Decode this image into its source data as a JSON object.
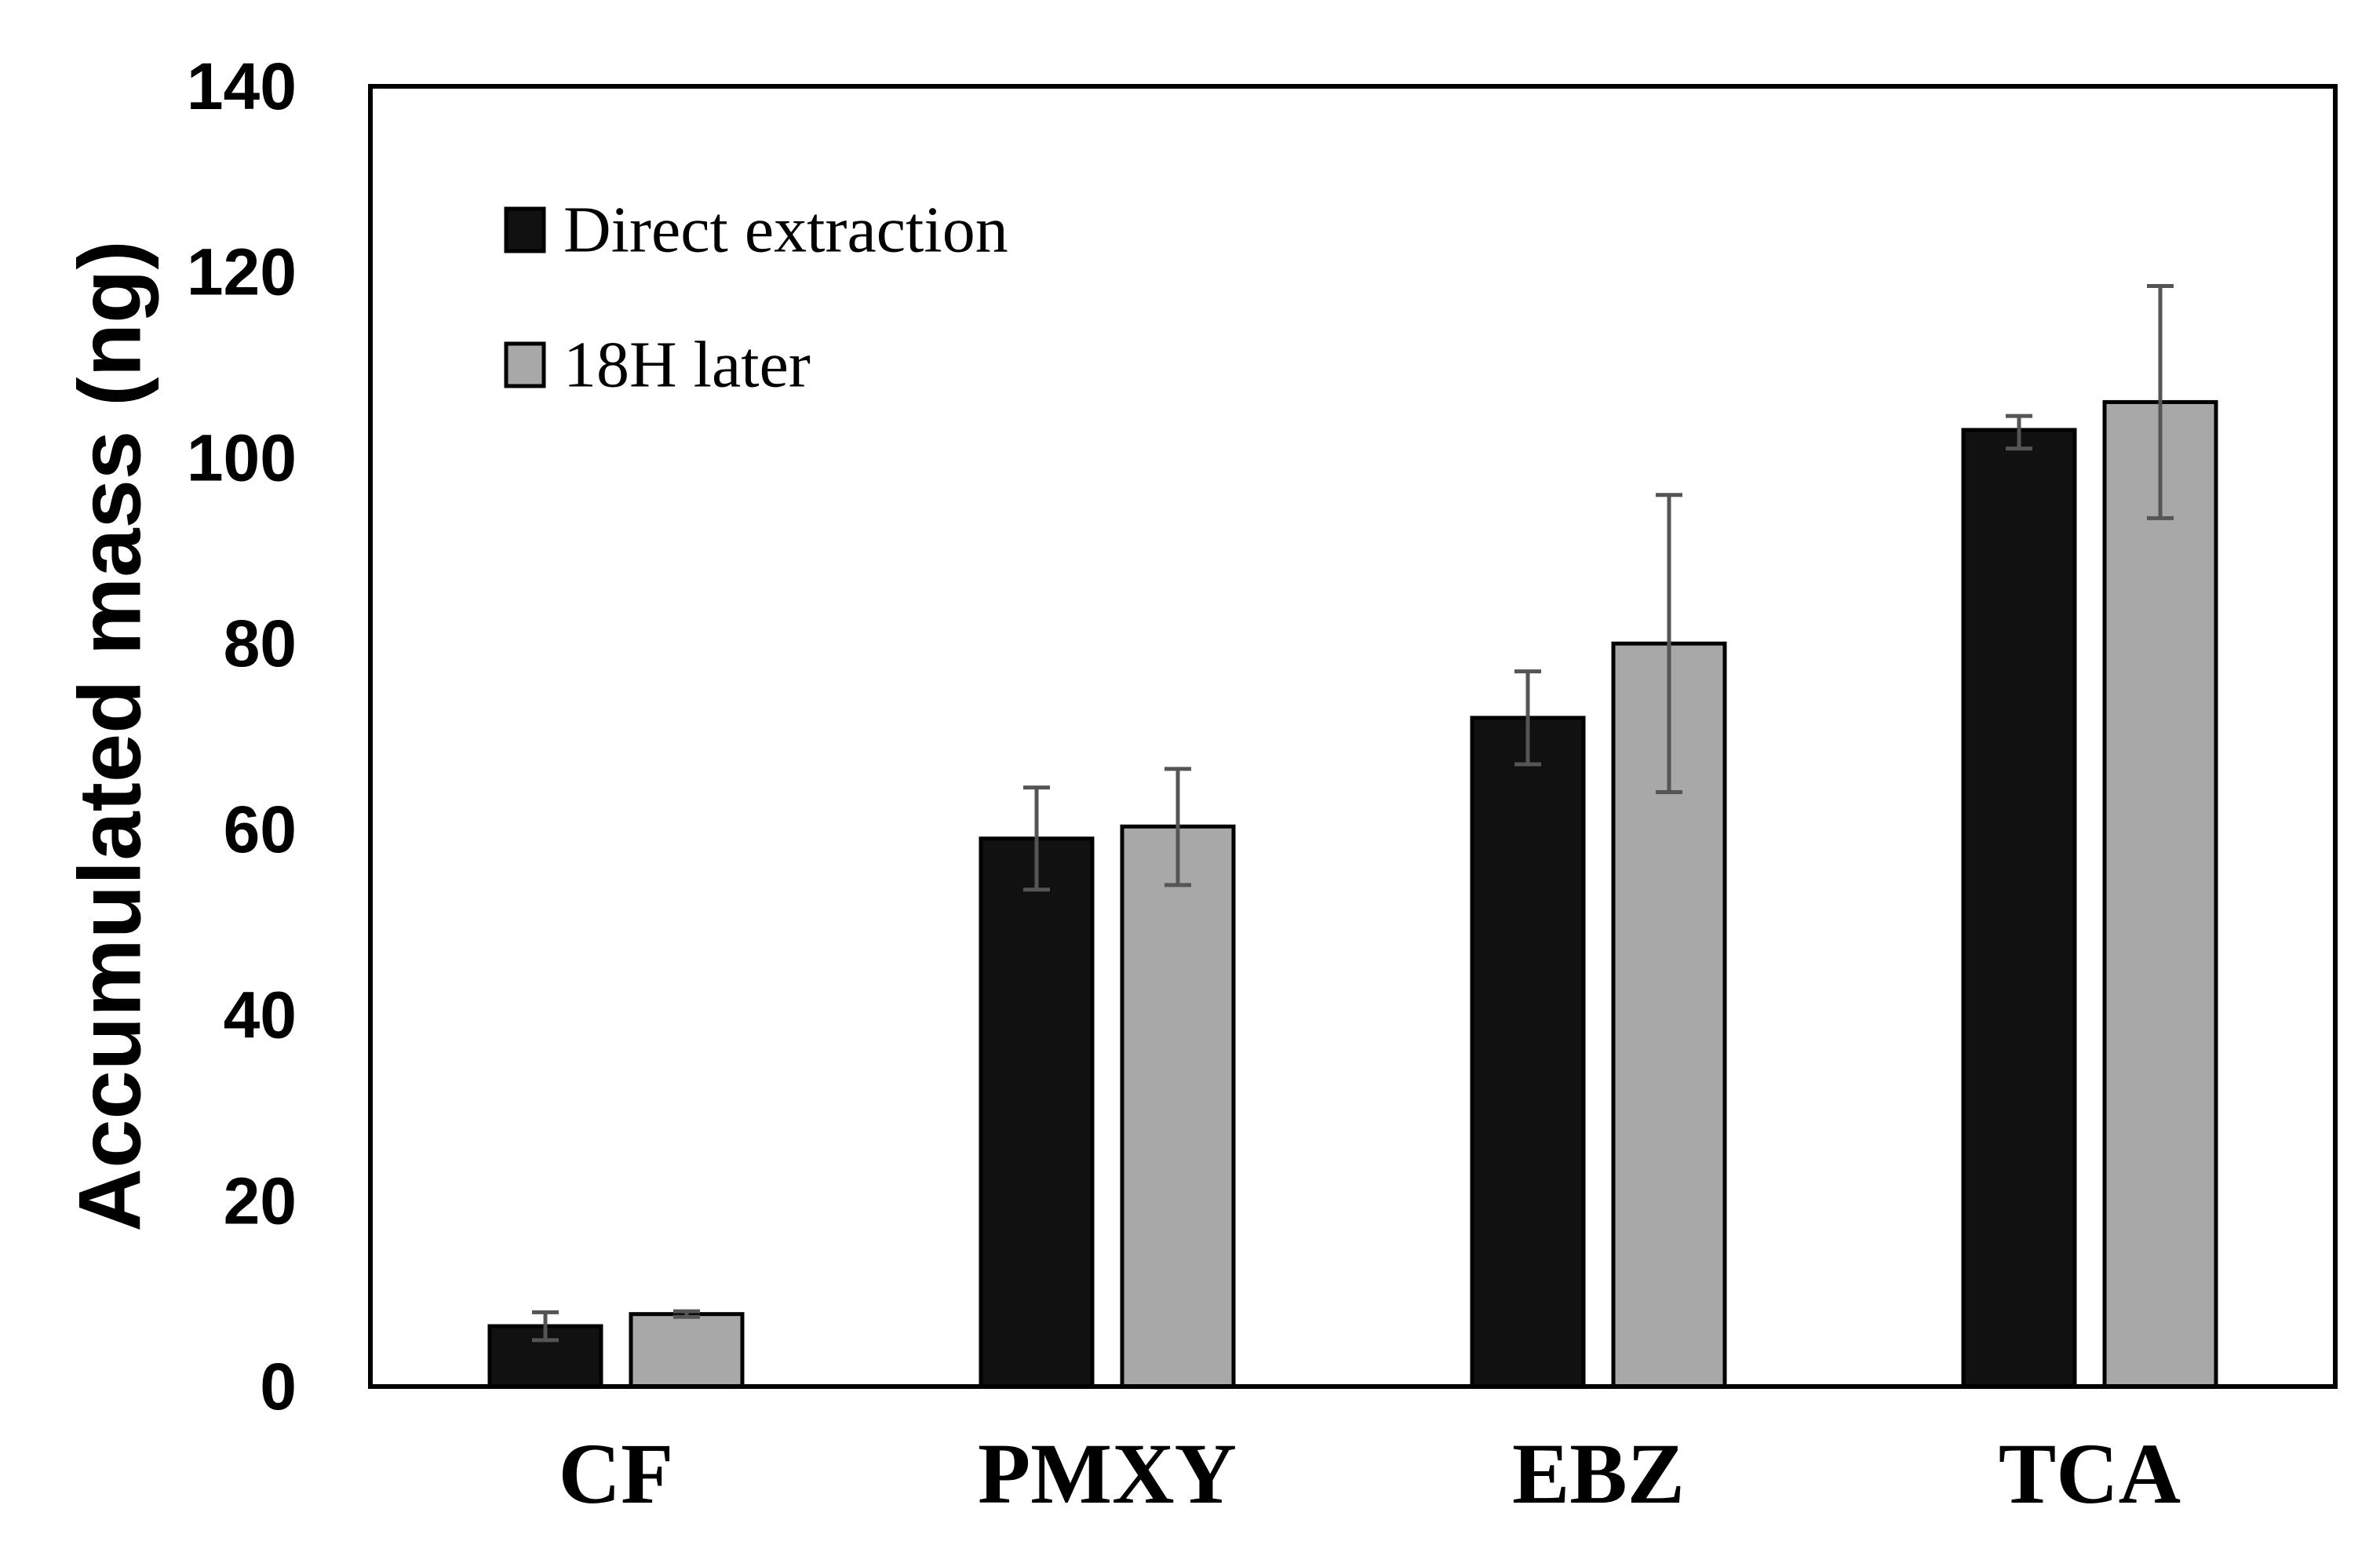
{
  "chart_data": {
    "type": "bar",
    "title": "",
    "xlabel": "",
    "ylabel": "Accumulated mass (ng)",
    "ylim": [
      0,
      140
    ],
    "yticks": [
      0,
      20,
      40,
      60,
      80,
      100,
      120,
      140
    ],
    "grid": false,
    "legend_position": "top-left",
    "categories": [
      "CF",
      "PMXY",
      "EBZ",
      "TCA"
    ],
    "series": [
      {
        "name": "Direct extraction",
        "color": "#111111",
        "values": [
          6.5,
          59,
          72,
          103
        ],
        "error_low": [
          5,
          53.5,
          67,
          101
        ],
        "error_high": [
          8,
          64.5,
          77,
          104.5
        ]
      },
      {
        "name": "18H later",
        "color": "#a8a8a8",
        "values": [
          7.8,
          60.3,
          80,
          106
        ],
        "error_low": [
          7.5,
          54,
          64,
          93.5
        ],
        "error_high": [
          8.1,
          66.5,
          96,
          118.5
        ]
      }
    ]
  }
}
